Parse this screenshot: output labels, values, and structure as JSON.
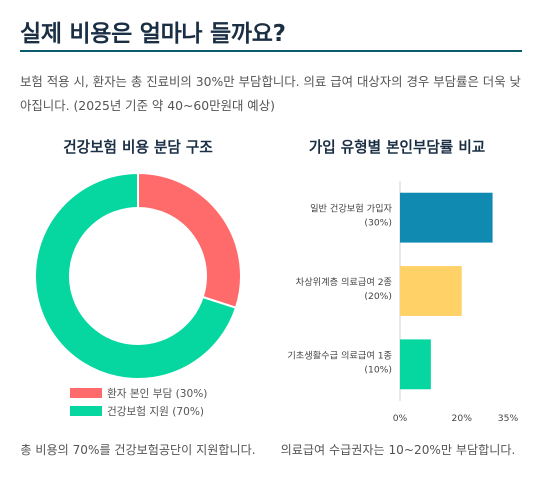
{
  "header": {
    "title": "실제 비용은 얼마나 들까요?",
    "intro": "보험 적용 시, 환자는 총 진료비의 30%만 부담합니다. 의료 급여 대상자의 경우 부담률은 더욱 낮아집니다. (2025년 기준 약 40~60만원대 예상)"
  },
  "colors": {
    "accent": "#0a5c6b",
    "patient": "#ff6b6b",
    "insurance": "#06d6a0",
    "bar_general": "#118ab2",
    "bar_lowincome": "#ffd166",
    "bar_basic": "#06d6a0"
  },
  "left_panel": {
    "title": "건강보험 비용 분담 구조",
    "caption": "총 비용의 70%를 건강보험공단이 지원합니다."
  },
  "right_panel": {
    "title": "가입 유형별 본인부담률 비교",
    "caption": "의료급여 수급권자는 10~20%만 부담합니다."
  },
  "chart_data": [
    {
      "type": "pie",
      "title": "건강보험 비용 분담 구조",
      "donut": true,
      "legend_position": "bottom",
      "slices": [
        {
          "label": "환자 본인 부담 (30%)",
          "value": 30,
          "color": "#ff6b6b"
        },
        {
          "label": "건강보험 지원 (70%)",
          "value": 70,
          "color": "#06d6a0"
        }
      ]
    },
    {
      "type": "bar",
      "orientation": "horizontal",
      "title": "가입 유형별 본인부담률 비교",
      "categories": [
        [
          "일반 건강보험 가입자",
          "(30%)"
        ],
        [
          "차상위계층 의료급여 2종",
          "(20%)"
        ],
        [
          "기초생활수급 의료급여 1종",
          "(10%)"
        ]
      ],
      "values": [
        30,
        20,
        10
      ],
      "colors": [
        "#118ab2",
        "#ffd166",
        "#06d6a0"
      ],
      "xlim": [
        0,
        35
      ],
      "xticks": [
        "0%",
        "20%",
        "35%"
      ],
      "xtick_values": [
        0,
        20,
        35
      ],
      "grid": false
    }
  ]
}
